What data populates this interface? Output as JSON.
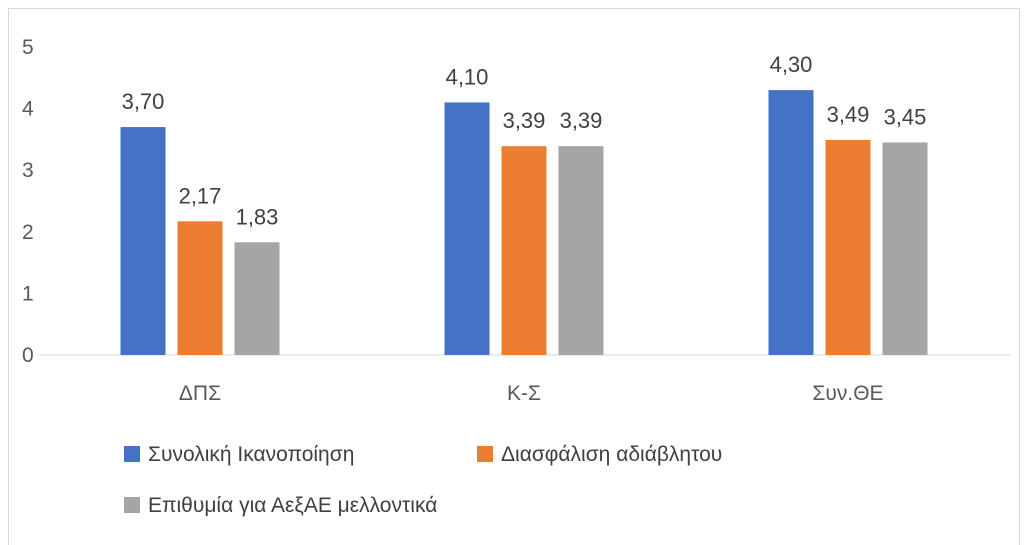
{
  "chart_data": {
    "type": "bar",
    "categories": [
      "ΔΠΣ",
      "Κ-Σ",
      "Συν.ΘΕ"
    ],
    "series": [
      {
        "name": "Συνολική Ικανοποίηση",
        "values": [
          3.7,
          4.1,
          4.3
        ],
        "labels": [
          "3,70",
          "4,10",
          "4,30"
        ],
        "color": "#4472c4"
      },
      {
        "name": "Διασφάλιση αδιάβλητου",
        "values": [
          2.17,
          3.39,
          3.49
        ],
        "labels": [
          "2,17",
          "3,39",
          "3,49"
        ],
        "color": "#ed7d31"
      },
      {
        "name": "Επιθυμία για ΑεξΑΕ μελλοντικά",
        "values": [
          1.83,
          3.39,
          3.45
        ],
        "labels": [
          "1,83",
          "3,39",
          "3,45"
        ],
        "color": "#a5a5a5"
      }
    ],
    "ylim": [
      0,
      5
    ],
    "yticks": [
      "0",
      "1",
      "2",
      "3",
      "4",
      "5"
    ],
    "grid": false,
    "legend_position": "bottom"
  }
}
